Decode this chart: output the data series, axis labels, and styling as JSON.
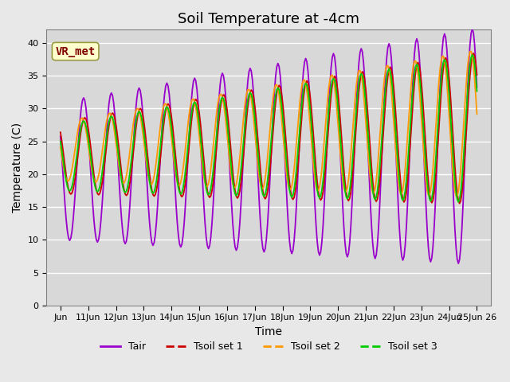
{
  "title": "Soil Temperature at -4cm",
  "xlabel": "Time",
  "ylabel": "Temperature (C)",
  "ylim": [
    0,
    42
  ],
  "yticks": [
    0,
    5,
    10,
    15,
    20,
    25,
    30,
    35,
    40
  ],
  "x_tick_labels": [
    "Jun",
    "11Jun",
    "12Jun",
    "13Jun",
    "14Jun",
    "15Jun",
    "16Jun",
    "17Jun",
    "18Jun",
    "19Jun",
    "20Jun",
    "21Jun",
    "22Jun",
    "23Jun",
    "24Jun",
    "25Jun 26"
  ],
  "legend_labels": [
    "Tair",
    "Tsoil set 1",
    "Tsoil set 2",
    "Tsoil set 3"
  ],
  "legend_colors": [
    "#9900cc",
    "#cc0000",
    "#ff9900",
    "#00cc00"
  ],
  "annotation_text": "VR_met",
  "bg_color": "#e8e8e8",
  "plot_bg_color": "#d8d8d8",
  "title_fontsize": 13,
  "axis_fontsize": 10,
  "tick_fontsize": 8,
  "legend_fontsize": 9
}
